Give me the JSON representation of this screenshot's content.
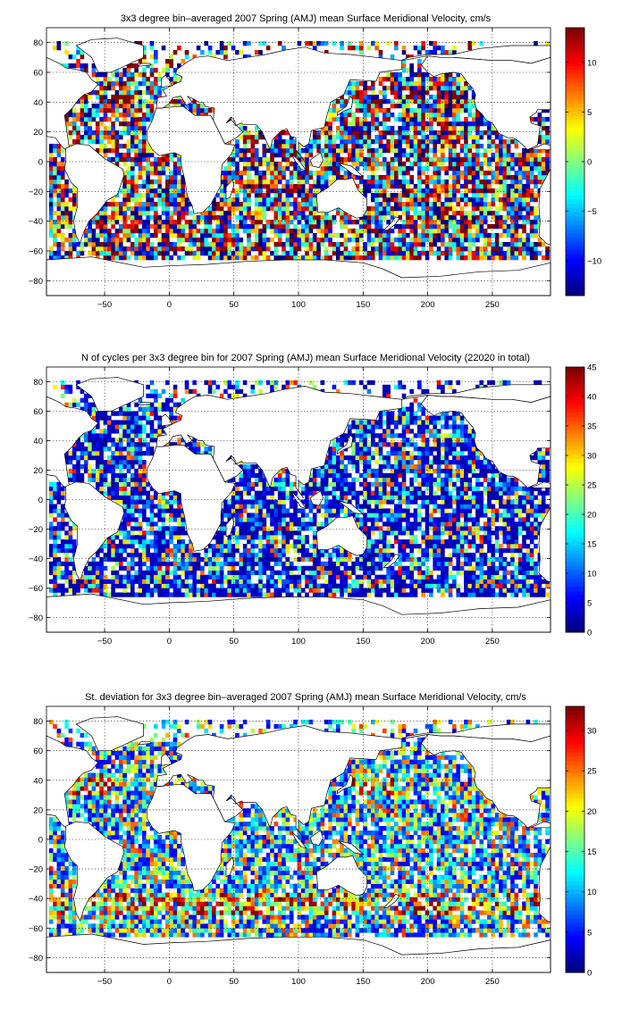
{
  "chart_data": [
    {
      "type": "heatmap",
      "title": "3x3 degree bin–averaged 2007 Spring (AMJ) mean Surface Meridional Velocity, cm/s",
      "xlabel": "",
      "ylabel": "",
      "xlim": [
        -95,
        295
      ],
      "ylim": [
        -90,
        90
      ],
      "x_ticks": [
        -50,
        0,
        50,
        100,
        150,
        200,
        250
      ],
      "y_ticks": [
        -80,
        -60,
        -40,
        -20,
        0,
        20,
        40,
        60,
        80
      ],
      "colorbar": {
        "range": [
          -13.5,
          13.5
        ],
        "ticks": [
          -10,
          -5,
          0,
          5,
          10
        ]
      },
      "bin_size_deg": 3,
      "colormap": "jet",
      "grid": true
    },
    {
      "type": "heatmap",
      "title": "N of cycles per 3x3 degree bin for 2007 Spring (AMJ) mean Surface Meridional Velocity (22020 in total)",
      "xlabel": "",
      "ylabel": "",
      "xlim": [
        -95,
        295
      ],
      "ylim": [
        -90,
        90
      ],
      "x_ticks": [
        -50,
        0,
        50,
        100,
        150,
        200,
        250
      ],
      "y_ticks": [
        -80,
        -60,
        -40,
        -20,
        0,
        20,
        40,
        60,
        80
      ],
      "colorbar": {
        "range": [
          0,
          45
        ],
        "ticks": [
          0,
          5,
          10,
          15,
          20,
          25,
          30,
          35,
          40,
          45
        ]
      },
      "bin_size_deg": 3,
      "total_cycles": 22020,
      "colormap": "jet",
      "grid": true
    },
    {
      "type": "heatmap",
      "title": "St. deviation for 3x3 degree bin–averaged 2007 Spring (AMJ) mean Surface Meridional Velocity, cm/s",
      "xlabel": "",
      "ylabel": "",
      "xlim": [
        -95,
        295
      ],
      "ylim": [
        -90,
        90
      ],
      "x_ticks": [
        -50,
        0,
        50,
        100,
        150,
        200,
        250
      ],
      "y_ticks": [
        -80,
        -60,
        -40,
        -20,
        0,
        20,
        40,
        60,
        80
      ],
      "colorbar": {
        "range": [
          0,
          33
        ],
        "ticks": [
          0,
          5,
          10,
          15,
          20,
          25,
          30
        ]
      },
      "bin_size_deg": 3,
      "colormap": "jet",
      "grid": true
    }
  ]
}
